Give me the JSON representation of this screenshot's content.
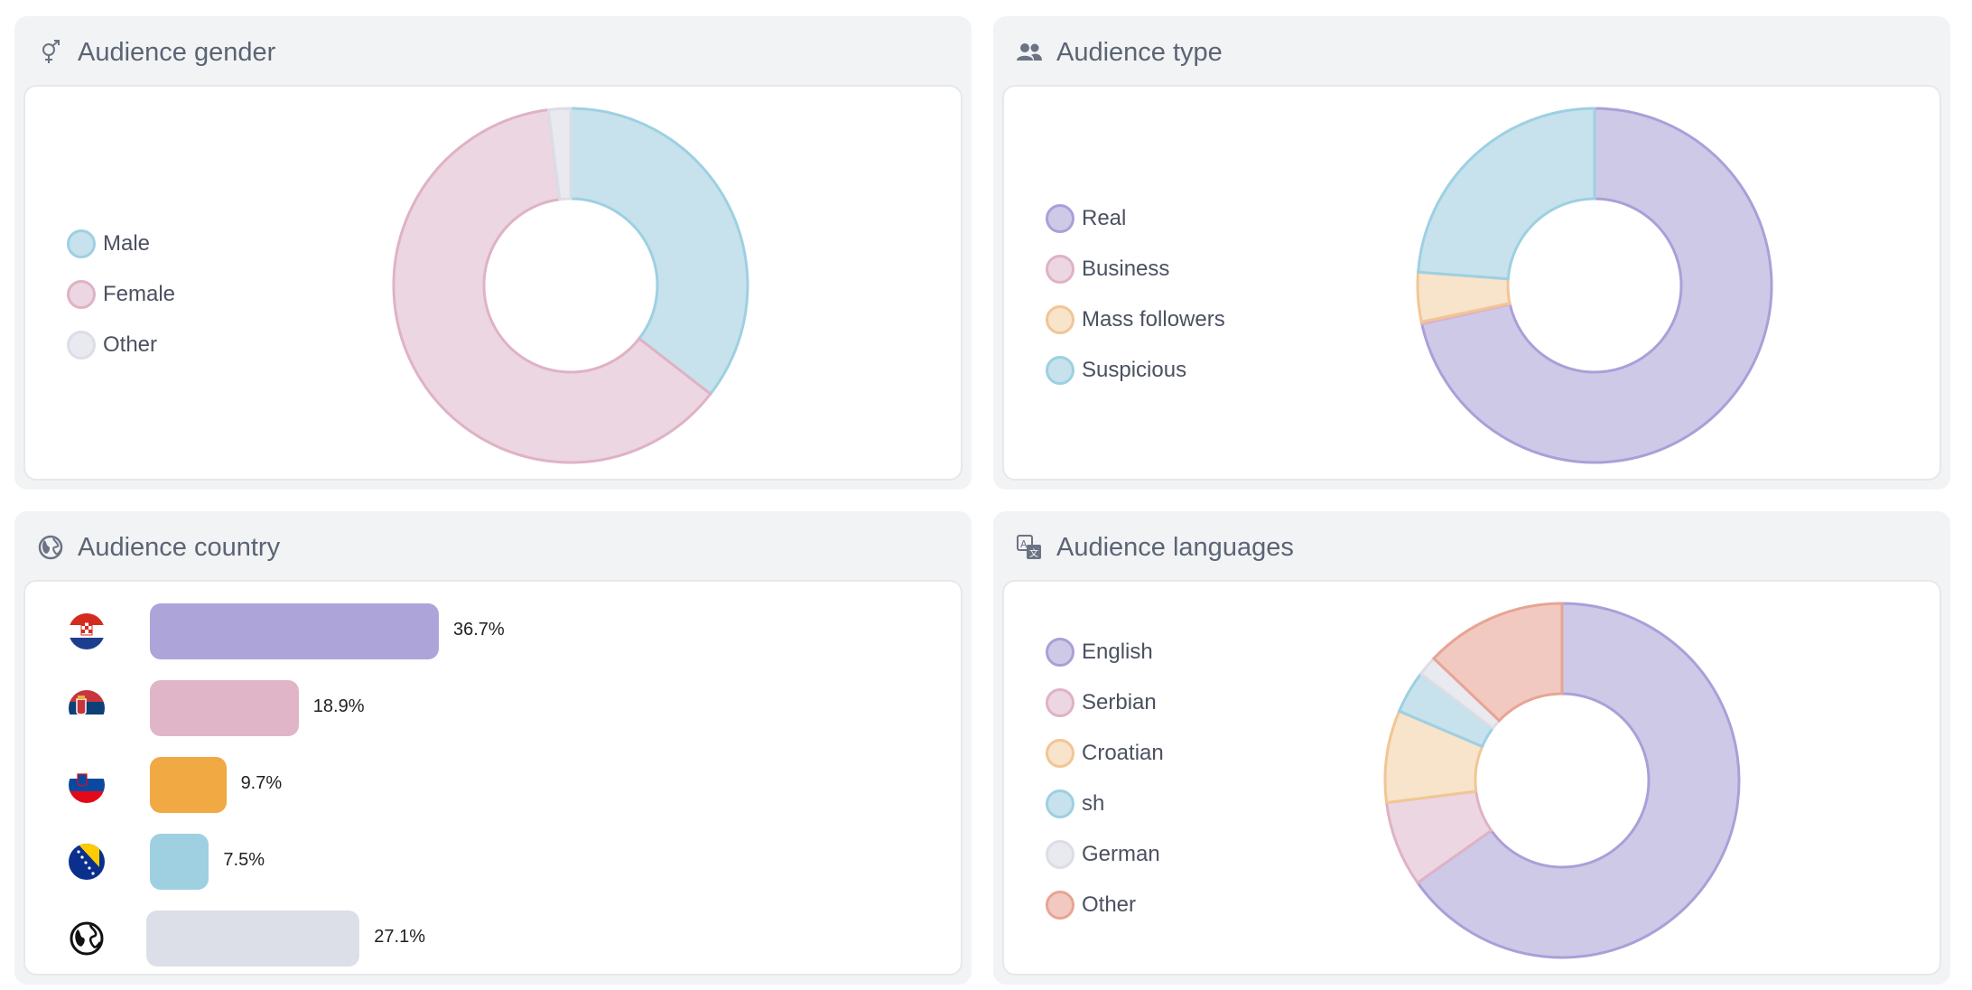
{
  "panels": {
    "gender": {
      "title": "Audience gender",
      "icon": "gender-icon"
    },
    "type": {
      "title": "Audience type",
      "icon": "users-icon"
    },
    "country": {
      "title": "Audience country",
      "icon": "globe-icon"
    },
    "languages": {
      "title": "Audience languages",
      "icon": "translate-icon"
    }
  },
  "colors": {
    "purple": "#cfc9e8",
    "purple_stroke": "#ab9fd8",
    "pink": "#ecd6e1",
    "pink_stroke": "#dfb2c5",
    "peach": "#f8e3cb",
    "peach_stroke": "#f1c694",
    "blue": "#c7e2ec",
    "blue_stroke": "#9dd0e2",
    "grey": "#e9eaf0",
    "grey_stroke": "#dcdde6",
    "salmon": "#f2c9c0",
    "salmon_stroke": "#e7a494"
  },
  "chart_data": [
    {
      "id": "gender",
      "type": "pie",
      "categories": [
        "Male",
        "Female",
        "Other"
      ],
      "values": [
        35.5,
        62.5,
        2.0
      ]
    },
    {
      "id": "type",
      "type": "pie",
      "categories": [
        "Real",
        "Business",
        "Mass followers",
        "Suspicious"
      ],
      "values": [
        71.5,
        0.2,
        4.5,
        23.8
      ]
    },
    {
      "id": "country",
      "type": "bar",
      "categories": [
        "Croatia",
        "Serbia",
        "Slovenia",
        "Bosnia and Herzegovina",
        "Other"
      ],
      "values": [
        36.7,
        18.9,
        9.7,
        7.5,
        27.1
      ],
      "labels": [
        "36.7%",
        "18.9%",
        "9.7%",
        "7.5%",
        "27.1%"
      ]
    },
    {
      "id": "languages",
      "type": "pie",
      "categories": [
        "English",
        "Serbian",
        "Croatian",
        "sh",
        "German",
        "Other"
      ],
      "values": [
        65.2,
        7.8,
        8.4,
        3.9,
        1.8,
        12.9
      ]
    }
  ]
}
